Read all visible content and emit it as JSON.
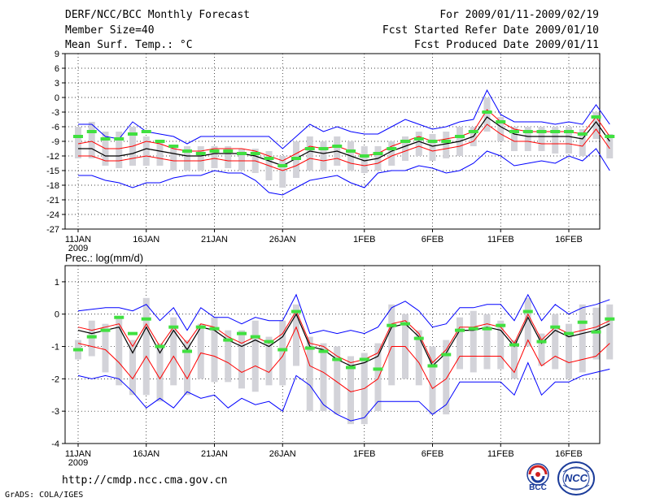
{
  "header": {
    "title": "DERF/NCC/BCC Monthly Forecast",
    "member_size": "Member Size=40",
    "variable": "Mean Surf. Temp.: °C",
    "period": "For 2009/01/11-2009/02/19",
    "start_date": "Fcst Started Refer Date 2009/01/10",
    "produced_date": "Fcst Produced Date 2009/01/11"
  },
  "footer": {
    "url": "http://cmdp.ncc.cma.gov.cn",
    "grads": "GrADS: COLA/IGES",
    "logo_bcc": "BCC",
    "logo_ncc": "NCC"
  },
  "colors": {
    "bar": "#d3d3d9",
    "mean": "#000000",
    "red": "#ff0000",
    "blue": "#0000ff",
    "green": "#40e040",
    "grid": "#000000"
  },
  "chart_data": [
    {
      "type": "line",
      "title": "Mean Surf. Temp.: °C",
      "x_tick_labels": [
        "11JAN",
        "16JAN",
        "21JAN",
        "26JAN",
        "1FEB",
        "6FEB",
        "11FEB",
        "16FEB"
      ],
      "x_tick_days": [
        0,
        5,
        10,
        15,
        21,
        26,
        31,
        36
      ],
      "year_label": "2009",
      "ylim": [
        -27,
        9
      ],
      "y_ticks": [
        9,
        6,
        3,
        0,
        -3,
        -6,
        -9,
        -12,
        -15,
        -18,
        -21,
        -24,
        -27
      ],
      "x_days": [
        0,
        1,
        2,
        3,
        4,
        5,
        6,
        7,
        8,
        9,
        10,
        11,
        12,
        13,
        14,
        15,
        16,
        17,
        18,
        19,
        20,
        21,
        22,
        23,
        24,
        25,
        26,
        27,
        28,
        29,
        30,
        31,
        32,
        33,
        34,
        35,
        36,
        37,
        38,
        39
      ],
      "series": [
        {
          "name": "ensemble_mean",
          "values": [
            -10.5,
            -10.5,
            -12,
            -12,
            -11.5,
            -10.5,
            -11,
            -11.5,
            -12,
            -12,
            -11.5,
            -11.5,
            -11.5,
            -12,
            -13,
            -14,
            -12.5,
            -11,
            -11.5,
            -11,
            -12,
            -13,
            -12.5,
            -11,
            -10,
            -9,
            -10,
            -9.5,
            -9,
            -8,
            -4,
            -6,
            -7.5,
            -8,
            -8,
            -8,
            -8,
            -8.5,
            -5,
            -9
          ]
        },
        {
          "name": "upper_percentile",
          "values": [
            -9.5,
            -9,
            -10.5,
            -10.5,
            -10,
            -9,
            -9.5,
            -10.5,
            -11,
            -11,
            -10.5,
            -10.5,
            -10.5,
            -11,
            -12,
            -13,
            -11.5,
            -10,
            -10.5,
            -10,
            -11,
            -12,
            -11.5,
            -10,
            -9,
            -8,
            -9,
            -8.5,
            -8,
            -7,
            -2.5,
            -5,
            -6.5,
            -7,
            -7,
            -7,
            -7,
            -7.5,
            -4,
            -8
          ]
        },
        {
          "name": "lower_percentile",
          "values": [
            -12,
            -12,
            -13,
            -13,
            -12.5,
            -12,
            -12.5,
            -13,
            -13,
            -13,
            -12.5,
            -13,
            -13,
            -13,
            -14,
            -15,
            -14,
            -12.5,
            -13,
            -12.5,
            -13.5,
            -14,
            -13.5,
            -12,
            -11,
            -10,
            -11,
            -10.5,
            -10,
            -9,
            -5.5,
            -7.5,
            -9,
            -9,
            -9.5,
            -9.5,
            -9.5,
            -10,
            -6.5,
            -10.5
          ]
        },
        {
          "name": "ensemble_max",
          "values": [
            -5.5,
            -5.5,
            -8,
            -8.5,
            -5,
            -7,
            -7.5,
            -8,
            -9.5,
            -8,
            -8,
            -8,
            -8,
            -8,
            -8,
            -10.5,
            -8,
            -5.5,
            -7,
            -6,
            -7,
            -7.5,
            -7.5,
            -6,
            -4.5,
            -5.5,
            -6.5,
            -6,
            -5,
            -4.5,
            1.5,
            -3.5,
            -5,
            -5,
            -5,
            -5.5,
            -5,
            -5.5,
            -1.5,
            -5.5
          ]
        },
        {
          "name": "ensemble_min",
          "values": [
            -16,
            -16,
            -17,
            -17.5,
            -18.5,
            -17.5,
            -17.5,
            -16.5,
            -16,
            -16,
            -15,
            -15.5,
            -15.5,
            -17,
            -19.5,
            -20,
            -18.5,
            -17,
            -16.5,
            -16,
            -17.5,
            -18.5,
            -15.5,
            -15,
            -15,
            -14,
            -14.5,
            -15.5,
            -15,
            -13.5,
            -11,
            -12,
            -14,
            -13.5,
            -13,
            -13.5,
            -12,
            -13,
            -10.5,
            -15
          ]
        },
        {
          "name": "box_top",
          "values": [
            -6,
            -5,
            -7,
            -7,
            -6,
            -8,
            -9,
            -10,
            -10,
            -10,
            -10,
            -10,
            -10.5,
            -10.5,
            -11,
            -12,
            -9,
            -8,
            -9,
            -8,
            -9,
            -10,
            -10,
            -9,
            -8,
            -7,
            -7.5,
            -7,
            -6,
            -6,
            0,
            -4,
            -6,
            -6,
            -6,
            -6,
            -6,
            -6.5,
            -3,
            -7.5
          ]
        },
        {
          "name": "box_bottom",
          "values": [
            -12.5,
            -12.5,
            -14,
            -14.5,
            -14,
            -14,
            -14,
            -15,
            -15,
            -15,
            -14.5,
            -14.5,
            -15,
            -15.5,
            -17,
            -18.5,
            -16.5,
            -15,
            -15,
            -14,
            -15,
            -15.5,
            -15,
            -14,
            -13,
            -12,
            -13,
            -12.5,
            -12,
            -10,
            -7,
            -9,
            -11,
            -11,
            -11,
            -11.5,
            -11.5,
            -12,
            -8.5,
            -12.5
          ]
        },
        {
          "name": "deterministic",
          "values": [
            -8,
            -7,
            -8.5,
            -8.5,
            -7.5,
            -7,
            -9,
            -10,
            -11,
            -11.5,
            -11,
            -11,
            -11.5,
            -11.5,
            -12.5,
            -14,
            -12.5,
            -10.5,
            -10.5,
            -10,
            -11,
            -12,
            -11.5,
            -10.5,
            -9,
            -8.5,
            -9,
            -9,
            -8,
            -7,
            -3,
            -5,
            -7,
            -7,
            -7,
            -7,
            -7,
            -7.5,
            -4,
            -8
          ]
        }
      ]
    },
    {
      "type": "line",
      "title": "Prec.: log(mm/d)",
      "x_tick_labels": [
        "11JAN",
        "16JAN",
        "21JAN",
        "26JAN",
        "1FEB",
        "6FEB",
        "11FEB",
        "16FEB"
      ],
      "x_tick_days": [
        0,
        5,
        10,
        15,
        21,
        26,
        31,
        36
      ],
      "year_label": "2009",
      "ylim": [
        -4,
        1.5
      ],
      "y_ticks": [
        1,
        0,
        -1,
        -2,
        -3,
        -4
      ],
      "x_days": [
        0,
        1,
        2,
        3,
        4,
        5,
        6,
        7,
        8,
        9,
        10,
        11,
        12,
        13,
        14,
        15,
        16,
        17,
        18,
        19,
        20,
        21,
        22,
        23,
        24,
        25,
        26,
        27,
        28,
        29,
        30,
        31,
        32,
        33,
        34,
        35,
        36,
        37,
        38,
        39
      ],
      "series": [
        {
          "name": "ensemble_mean",
          "values": [
            -0.5,
            -0.6,
            -0.5,
            -0.4,
            -1.2,
            -0.4,
            -1.2,
            -0.5,
            -1.1,
            -0.4,
            -0.5,
            -0.8,
            -1.0,
            -0.8,
            -1.0,
            -0.7,
            0.0,
            -1.0,
            -1.1,
            -1.4,
            -1.6,
            -1.5,
            -1.3,
            -0.4,
            -0.3,
            -0.7,
            -1.6,
            -1.2,
            -0.5,
            -0.5,
            -0.4,
            -0.5,
            -1.0,
            -0.1,
            -0.9,
            -0.5,
            -0.7,
            -0.6,
            -0.5,
            -0.3
          ]
        },
        {
          "name": "upper_percentile",
          "values": [
            -0.4,
            -0.5,
            -0.4,
            -0.3,
            -1.0,
            -0.3,
            -1.0,
            -0.4,
            -0.9,
            -0.3,
            -0.4,
            -0.7,
            -0.9,
            -0.7,
            -0.9,
            -0.6,
            0.1,
            -0.9,
            -1.0,
            -1.3,
            -1.5,
            -1.4,
            -1.2,
            -0.3,
            -0.2,
            -0.6,
            -1.5,
            -1.1,
            -0.4,
            -0.4,
            -0.3,
            -0.4,
            -0.9,
            0.0,
            -0.8,
            -0.4,
            -0.6,
            -0.5,
            -0.4,
            -0.2
          ]
        },
        {
          "name": "lower_percentile",
          "values": [
            -0.9,
            -1.0,
            -1.1,
            -1.5,
            -2.0,
            -1.3,
            -2.0,
            -1.3,
            -2.0,
            -1.2,
            -1.3,
            -1.5,
            -1.8,
            -1.6,
            -1.8,
            -1.3,
            -0.4,
            -1.6,
            -1.8,
            -2.1,
            -2.4,
            -2.3,
            -2.0,
            -1.0,
            -1.0,
            -1.5,
            -2.3,
            -2.0,
            -1.3,
            -1.3,
            -1.3,
            -1.3,
            -1.8,
            -0.8,
            -1.6,
            -1.3,
            -1.5,
            -1.4,
            -1.3,
            -0.9
          ]
        },
        {
          "name": "ensemble_max",
          "values": [
            0.1,
            0.15,
            0.2,
            0.2,
            0.1,
            0.3,
            -0.2,
            0.2,
            -0.5,
            0.2,
            -0.1,
            -0.1,
            -0.3,
            -0.1,
            -0.2,
            -0.2,
            0.6,
            -0.6,
            -0.5,
            -0.6,
            -0.5,
            -0.6,
            -0.4,
            0.2,
            0.4,
            0.1,
            -0.4,
            -0.3,
            0.2,
            0.2,
            0.3,
            0.3,
            -0.2,
            0.6,
            -0.2,
            0.3,
            0.0,
            0.2,
            0.3,
            0.45
          ]
        },
        {
          "name": "ensemble_min",
          "values": [
            -1.9,
            -2.0,
            -1.9,
            -2.0,
            -2.4,
            -2.9,
            -2.6,
            -2.9,
            -2.4,
            -2.6,
            -2.5,
            -2.9,
            -2.6,
            -2.8,
            -2.7,
            -3.0,
            -1.9,
            -2.2,
            -2.8,
            -3.1,
            -3.3,
            -3.2,
            -2.7,
            -2.7,
            -2.7,
            -2.7,
            -3.1,
            -2.8,
            -2.1,
            -2.1,
            -2.1,
            -2.1,
            -2.5,
            -1.5,
            -2.5,
            -2.1,
            -2.1,
            -1.9,
            -1.8,
            -1.7
          ]
        },
        {
          "name": "box_top",
          "values": [
            -0.8,
            -0.2,
            -0.3,
            -0.1,
            -0.8,
            0.5,
            -0.9,
            -0.1,
            -0.8,
            -0.3,
            -0.1,
            -0.5,
            -0.5,
            -0.2,
            -0.7,
            -0.2,
            0.3,
            -0.7,
            -0.9,
            -1.0,
            -1.3,
            -1.2,
            -0.9,
            0.3,
            0.0,
            -0.5,
            -1.0,
            -0.8,
            -0.1,
            0.1,
            0.0,
            -0.2,
            -0.8,
            0.5,
            -0.6,
            0.0,
            -0.3,
            0.3,
            0.2,
            0.3
          ]
        },
        {
          "name": "box_bottom",
          "values": [
            -1.4,
            -1.3,
            -1.8,
            -2.2,
            -2.5,
            -2.5,
            -2.7,
            -2.2,
            -2.5,
            -2.0,
            -2.1,
            -2.1,
            -2.3,
            -2.4,
            -2.2,
            -2.2,
            -1.6,
            -3.0,
            -3.0,
            -3.1,
            -3.4,
            -3.4,
            -3.0,
            -2.2,
            -2.0,
            -2.2,
            -3.1,
            -3.1,
            -1.7,
            -1.8,
            -1.7,
            -1.7,
            -2.0,
            -1.0,
            -1.6,
            -1.7,
            -2.0,
            -1.8,
            -1.4,
            -1.4
          ]
        },
        {
          "name": "deterministic",
          "values": [
            -1.1,
            -0.7,
            -0.5,
            -0.1,
            -0.6,
            -0.15,
            -1.0,
            -0.4,
            -1.15,
            -0.4,
            -0.45,
            -0.8,
            -0.6,
            -0.7,
            -0.85,
            -1.1,
            0.08,
            -1.05,
            -1.15,
            -1.4,
            -1.65,
            -1.4,
            -1.7,
            -0.35,
            -0.3,
            -0.75,
            -1.6,
            -1.25,
            -0.5,
            -0.45,
            -0.45,
            -0.35,
            -0.95,
            0.08,
            -0.85,
            -0.4,
            -0.6,
            -0.25,
            -0.55,
            -0.15
          ]
        }
      ]
    }
  ]
}
